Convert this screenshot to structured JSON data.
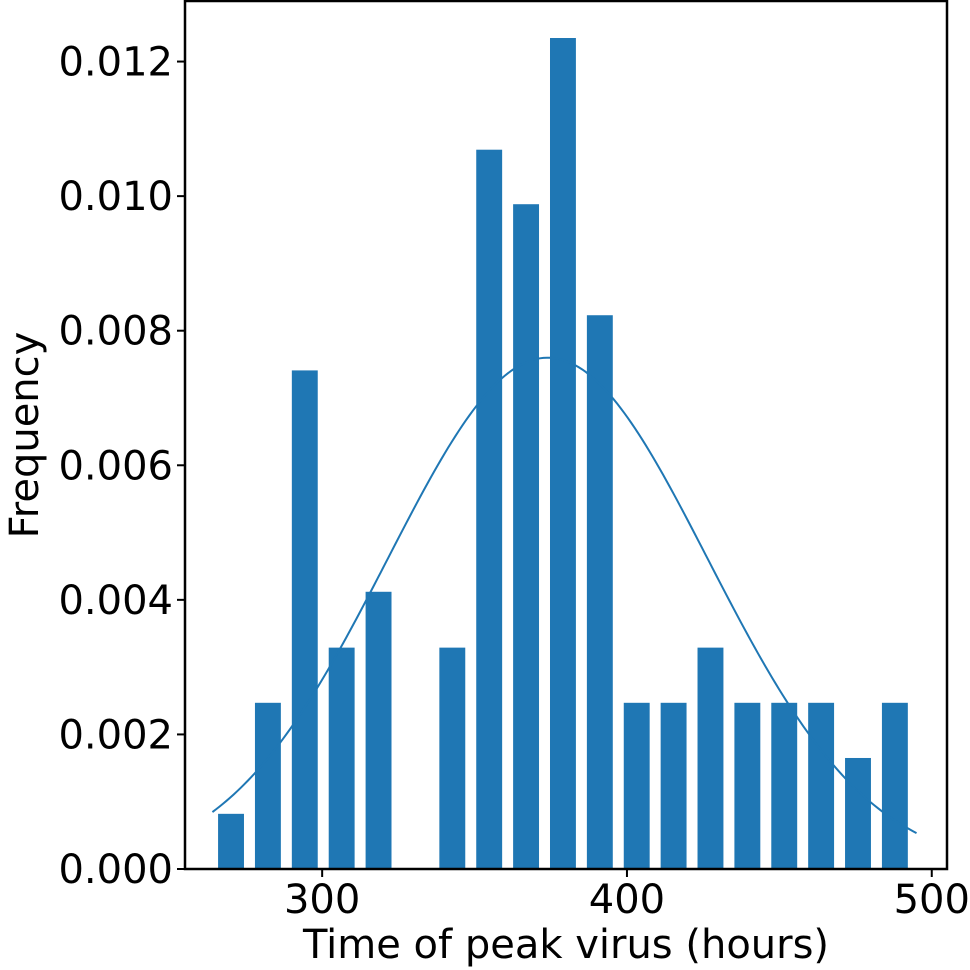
{
  "chart_data": {
    "type": "bar",
    "title": "",
    "xlabel": "Time of peak virus (hours)",
    "ylabel": "Frequency",
    "xlim": [
      255,
      505
    ],
    "ylim": [
      0,
      0.0129
    ],
    "grid": false,
    "legend": "none",
    "bar_color": "#1f77b4",
    "curve_color": "#1f77b4",
    "bin_width": 12.1,
    "bar_width": 8.5,
    "x_ticks": [
      {
        "value": 300,
        "label": "300"
      },
      {
        "value": 400,
        "label": "400"
      },
      {
        "value": 500,
        "label": "500"
      }
    ],
    "y_ticks": [
      {
        "value": 0.0,
        "label": "0.000"
      },
      {
        "value": 0.002,
        "label": "0.002"
      },
      {
        "value": 0.004,
        "label": "0.004"
      },
      {
        "value": 0.006,
        "label": "0.006"
      },
      {
        "value": 0.008,
        "label": "0.008"
      },
      {
        "value": 0.01,
        "label": "0.010"
      },
      {
        "value": 0.012,
        "label": "0.012"
      }
    ],
    "bins": [
      {
        "x": 270.1,
        "value": 0.00082
      },
      {
        "x": 282.2,
        "value": 0.00247
      },
      {
        "x": 294.3,
        "value": 0.00741
      },
      {
        "x": 306.4,
        "value": 0.00329
      },
      {
        "x": 318.5,
        "value": 0.00412
      },
      {
        "x": 330.6,
        "value": 0.0
      },
      {
        "x": 342.7,
        "value": 0.00329
      },
      {
        "x": 354.8,
        "value": 0.01069
      },
      {
        "x": 366.9,
        "value": 0.00988
      },
      {
        "x": 379.0,
        "value": 0.01235
      },
      {
        "x": 391.1,
        "value": 0.00823
      },
      {
        "x": 403.2,
        "value": 0.00247
      },
      {
        "x": 415.3,
        "value": 0.00247
      },
      {
        "x": 427.4,
        "value": 0.00329
      },
      {
        "x": 439.5,
        "value": 0.00247
      },
      {
        "x": 451.6,
        "value": 0.00247
      },
      {
        "x": 463.7,
        "value": 0.00247
      },
      {
        "x": 475.8,
        "value": 0.00165
      },
      {
        "x": 487.9,
        "value": 0.00247
      }
    ],
    "density_curve": {
      "mean": 374,
      "sd": 52.5,
      "x_range": [
        264,
        495
      ]
    }
  }
}
